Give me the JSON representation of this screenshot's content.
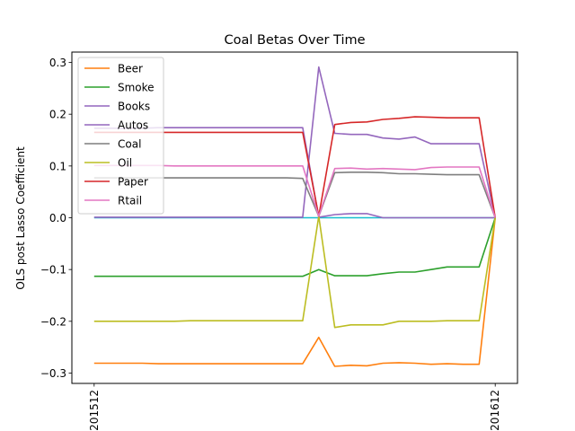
{
  "chart_data": {
    "type": "line",
    "title": "Coal  Betas Over Time",
    "xlabel": "",
    "ylabel": "OLS post Lasso Coefficient",
    "x_tick_labels": [
      "201512",
      "201612"
    ],
    "ylim": [
      -0.32,
      0.32
    ],
    "y_ticks": [
      -0.3,
      -0.2,
      -0.1,
      0.0,
      0.1,
      0.2,
      0.3
    ],
    "y_tick_labels": [
      "−0.3",
      "−0.2",
      "−0.1",
      "0.0",
      "0.1",
      "0.2",
      "0.3"
    ],
    "grid": false,
    "legend_position": "upper-left",
    "x": [
      0,
      1,
      2,
      3,
      4,
      5,
      6,
      7,
      8,
      9,
      10,
      11,
      12,
      13
    ],
    "series": [
      {
        "name": "Beer",
        "color": "#ff7f0e",
        "values": [
          -0.281,
          -0.281,
          -0.281,
          -0.281,
          -0.282,
          -0.282,
          -0.282,
          -0.282,
          -0.282,
          -0.282,
          -0.282,
          -0.282,
          -0.282,
          -0.282
        ]
      },
      {
        "name": "Smoke",
        "color": "#2ca02c",
        "values": [
          -0.113,
          -0.113,
          -0.113,
          -0.113,
          -0.113,
          -0.113,
          -0.113,
          -0.113,
          -0.113,
          -0.113,
          -0.113,
          -0.113,
          -0.113,
          -0.113
        ]
      },
      {
        "name": "Books",
        "color": "#9467bd",
        "values": [
          0.001,
          0.001,
          0.001,
          0.001,
          0.001,
          0.001,
          0.001,
          0.001,
          0.001,
          0.001,
          0.001,
          0.001,
          0.001,
          0.001
        ]
      },
      {
        "name": "Autos",
        "color": "#9467bd",
        "values": [
          0.173,
          0.173,
          0.173,
          0.173,
          0.174,
          0.174,
          0.174,
          0.174,
          0.174,
          0.174,
          0.174,
          0.174,
          0.174,
          0.174
        ]
      },
      {
        "name": "Coal",
        "color": "#7f7f7f",
        "values": [
          0.077,
          0.077,
          0.077,
          0.077,
          0.077,
          0.077,
          0.077,
          0.077,
          0.077,
          0.077,
          0.077,
          0.077,
          0.077,
          0.076
        ]
      },
      {
        "name": "Oil",
        "color": "#bcbd22",
        "values": [
          -0.2,
          -0.2,
          -0.2,
          -0.2,
          -0.2,
          -0.2,
          -0.199,
          -0.199,
          -0.199,
          -0.199,
          -0.199,
          -0.199,
          -0.199,
          -0.199
        ]
      },
      {
        "name": "Paper",
        "color": "#d62728",
        "values": [
          0.165,
          0.165,
          0.165,
          0.165,
          0.165,
          0.165,
          0.165,
          0.165,
          0.165,
          0.165,
          0.165,
          0.165,
          0.165,
          0.165
        ]
      },
      {
        "name": "Rtail",
        "color": "#e377c2",
        "values": [
          0.101,
          0.101,
          0.101,
          0.101,
          0.101,
          0.1,
          0.1,
          0.1,
          0.1,
          0.1,
          0.1,
          0.1,
          0.1,
          0.1
        ]
      }
    ],
    "tail_x": [
      13,
      14,
      15,
      16,
      17,
      18,
      19,
      20,
      21,
      22,
      23,
      24,
      25
    ],
    "tail_series": [
      {
        "name": "Beer",
        "values": [
          -0.282,
          -0.231,
          -0.287,
          -0.285,
          -0.286,
          -0.281,
          -0.28,
          -0.281,
          -0.283,
          -0.282,
          -0.283,
          -0.283,
          0.0
        ]
      },
      {
        "name": "Smoke",
        "values": [
          -0.113,
          -0.1,
          -0.112,
          -0.112,
          -0.112,
          -0.108,
          -0.105,
          -0.105,
          -0.1,
          -0.095,
          -0.095,
          -0.095,
          0.0
        ]
      },
      {
        "name": "Books",
        "values": [
          0.001,
          0.291,
          0.163,
          0.161,
          0.161,
          0.154,
          0.152,
          0.156,
          0.143,
          0.143,
          0.143,
          0.143,
          0.0
        ]
      },
      {
        "name": "Autos",
        "values": [
          0.174,
          0.001,
          0.006,
          0.008,
          0.008,
          0.0,
          0.0,
          0.0,
          0.0,
          0.0,
          0.0,
          0.0,
          0.0
        ]
      },
      {
        "name": "Coal",
        "values": [
          0.076,
          0.003,
          0.087,
          0.088,
          0.088,
          0.087,
          0.085,
          0.085,
          0.084,
          0.083,
          0.083,
          0.083,
          0.0
        ]
      },
      {
        "name": "Oil",
        "values": [
          -0.199,
          0.003,
          -0.212,
          -0.207,
          -0.207,
          -0.207,
          -0.2,
          -0.2,
          -0.2,
          -0.199,
          -0.199,
          -0.199,
          0.0
        ]
      },
      {
        "name": "Paper",
        "values": [
          0.165,
          0.003,
          0.18,
          0.184,
          0.185,
          0.19,
          0.192,
          0.195,
          0.194,
          0.193,
          0.193,
          0.193,
          0.0
        ]
      },
      {
        "name": "Rtail",
        "values": [
          0.1,
          0.003,
          0.095,
          0.096,
          0.094,
          0.095,
          0.094,
          0.093,
          0.097,
          0.098,
          0.098,
          0.098,
          0.0
        ]
      }
    ],
    "extra_series": [
      {
        "color": "#17becf",
        "values_all_x": 0.0
      }
    ]
  }
}
